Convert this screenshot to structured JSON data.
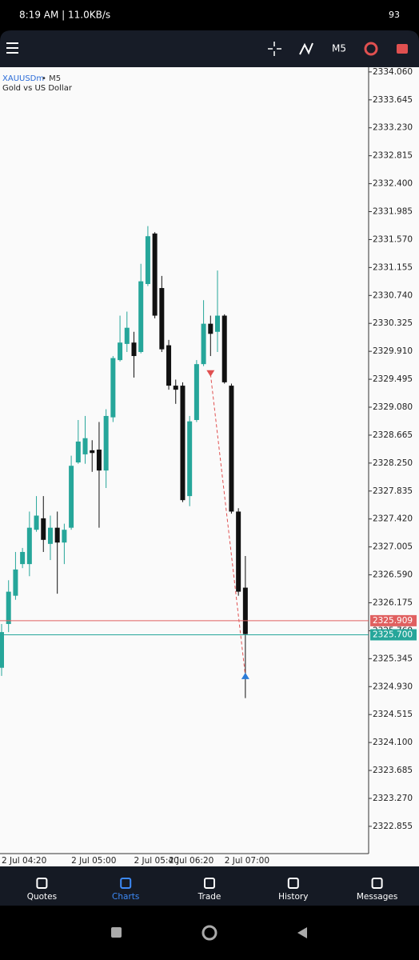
{
  "ui": {
    "status_time": "8:19 AM | 11.0KB/s",
    "battery": "93",
    "timeframe": "M5",
    "nav": [
      "Quotes",
      "Charts",
      "Trade",
      "History",
      "Messages"
    ],
    "active_nav": 1
  },
  "chart_data": {
    "type": "candlestick",
    "symbol": "XAUUSDm",
    "timeframe": "• M5",
    "subtitle": "Gold vs US Dollar",
    "up_color": "#26a69a",
    "down_color": "#111111",
    "categories": [
      "2 Jul 04:20",
      null,
      null,
      null,
      null,
      null,
      null,
      null,
      null,
      null,
      "2 Jul 05:00",
      null,
      null,
      null,
      null,
      null,
      null,
      null,
      null,
      "2 Jul 05:40",
      null,
      null,
      null,
      null,
      "2 Jul 06:20",
      null,
      null,
      null,
      null,
      null,
      null,
      null,
      "2 Jul 07:00",
      null,
      null,
      null
    ],
    "open": [
      2325.21,
      2325.86,
      2326.28,
      2326.75,
      2326.75,
      2327.26,
      2327.43,
      2327.05,
      2327.29,
      2327.07,
      2327.29,
      2328.26,
      2328.38,
      2328.44,
      2328.45,
      2328.14,
      2328.93,
      2329.78,
      2330.02,
      2330.04,
      2329.9,
      2330.91,
      2331.66,
      2330.85,
      2330.0,
      2329.4,
      2329.4,
      2327.76,
      2328.89,
      2329.72,
      2330.32,
      2330.2,
      2330.44,
      2329.4,
      2327.53,
      2326.4
    ],
    "high": [
      2325.86,
      2326.51,
      2326.93,
      2326.99,
      2327.53,
      2327.76,
      2327.76,
      2327.47,
      2327.53,
      2327.35,
      2328.36,
      2328.89,
      2328.95,
      2328.59,
      2328.86,
      2329.05,
      2329.84,
      2330.44,
      2330.5,
      2330.2,
      2331.21,
      2331.77,
      2331.68,
      2331.03,
      2330.08,
      2329.49,
      2329.45,
      2328.95,
      2329.78,
      2330.67,
      2330.44,
      2331.11,
      2330.46,
      2329.43,
      2327.58,
      2326.87
    ],
    "low": [
      2325.09,
      2325.74,
      2326.22,
      2326.69,
      2326.57,
      2327.23,
      2326.93,
      2326.81,
      2326.31,
      2326.75,
      2327.26,
      2328.24,
      2328.24,
      2328.12,
      2327.29,
      2327.88,
      2328.86,
      2329.76,
      2329.9,
      2329.52,
      2329.88,
      2330.88,
      2330.4,
      2329.9,
      2329.34,
      2329.13,
      2327.67,
      2327.61,
      2328.86,
      2329.69,
      2329.84,
      2329.9,
      2329.43,
      2327.5,
      2326.28,
      2324.76
    ],
    "close": [
      2325.74,
      2326.34,
      2326.67,
      2326.93,
      2327.29,
      2327.47,
      2327.11,
      2327.29,
      2327.07,
      2327.26,
      2328.21,
      2328.57,
      2328.62,
      2328.4,
      2328.14,
      2328.95,
      2329.81,
      2330.04,
      2330.26,
      2329.84,
      2330.95,
      2331.62,
      2330.44,
      2329.94,
      2329.4,
      2329.34,
      2327.7,
      2328.87,
      2329.72,
      2330.32,
      2330.17,
      2330.44,
      2329.45,
      2327.53,
      2326.34,
      2325.71
    ],
    "ylim": [
      2322.45,
      2334.13
    ],
    "yticks": [
      {
        "value": 2334.06,
        "label": "2334.060"
      },
      {
        "value": 2333.645,
        "label": "2333.645"
      },
      {
        "value": 2333.23,
        "label": "2333.230"
      },
      {
        "value": 2332.815,
        "label": "2332.815"
      },
      {
        "value": 2332.4,
        "label": "2332.400"
      },
      {
        "value": 2331.985,
        "label": "2331.985"
      },
      {
        "value": 2331.57,
        "label": "2331.570"
      },
      {
        "value": 2331.155,
        "label": "2331.155"
      },
      {
        "value": 2330.74,
        "label": "2330.740"
      },
      {
        "value": 2330.325,
        "label": "2330.325"
      },
      {
        "value": 2329.91,
        "label": "2329.910"
      },
      {
        "value": 2329.495,
        "label": "2329.495"
      },
      {
        "value": 2329.08,
        "label": "2329.080"
      },
      {
        "value": 2328.665,
        "label": "2328.665"
      },
      {
        "value": 2328.25,
        "label": "2328.250"
      },
      {
        "value": 2327.835,
        "label": "2327.835"
      },
      {
        "value": 2327.42,
        "label": "2327.420"
      },
      {
        "value": 2327.005,
        "label": "2327.005"
      },
      {
        "value": 2326.59,
        "label": "2326.590"
      },
      {
        "value": 2326.175,
        "label": "2326.175"
      },
      {
        "value": 2325.76,
        "label": "2325.760"
      },
      {
        "value": 2325.345,
        "label": "2325.345"
      },
      {
        "value": 2324.93,
        "label": "2324.930"
      },
      {
        "value": 2324.515,
        "label": "2324.515"
      },
      {
        "value": 2324.1,
        "label": "2324.100"
      },
      {
        "value": 2323.685,
        "label": "2323.685"
      },
      {
        "value": 2323.27,
        "label": "2323.270"
      },
      {
        "value": 2322.855,
        "label": "2322.855"
      }
    ],
    "price_lines": [
      {
        "value": 2325.909,
        "label": "2325.909",
        "color": "#e06060"
      },
      {
        "value": 2325.7,
        "label": "2325.700",
        "color": "#26a69a"
      }
    ],
    "trade": {
      "entry_index": 30,
      "entry": 2329.57,
      "exit_index": 35,
      "exit": 2325.09
    }
  }
}
